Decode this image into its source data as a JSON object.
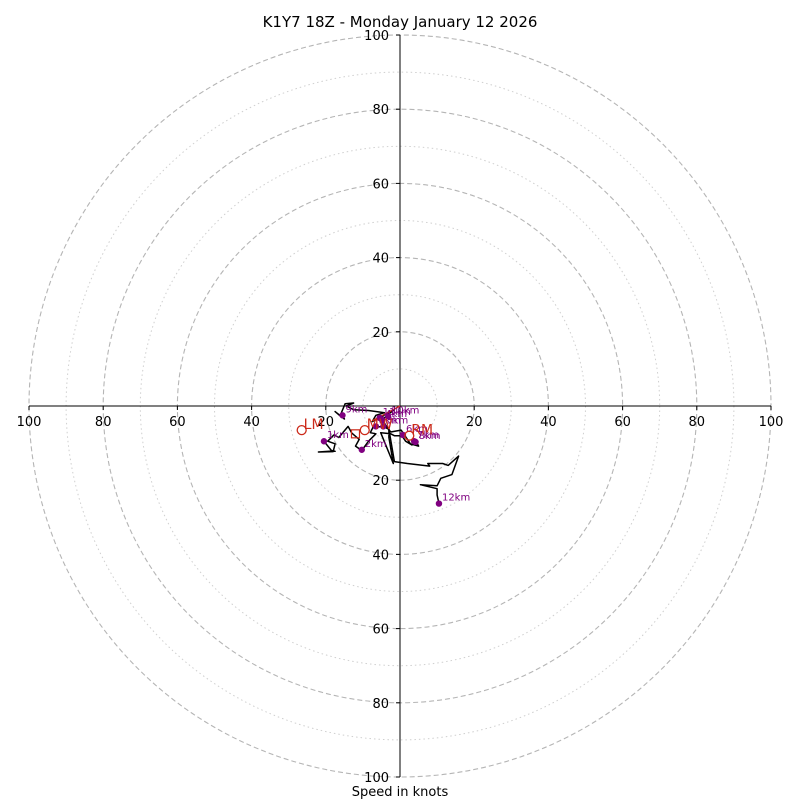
{
  "chart_data": {
    "type": "hodograph",
    "title": "K1Y7 18Z - Monday January 12 2026",
    "xlabel": "Speed in knots",
    "units": "knots",
    "range": 100,
    "ring_major": [
      20,
      40,
      60,
      80,
      100
    ],
    "ring_minor": [
      10,
      30,
      50,
      70,
      90
    ],
    "x_ticks": [
      {
        "value": -100,
        "label": "100"
      },
      {
        "value": -80,
        "label": "80"
      },
      {
        "value": -60,
        "label": "60"
      },
      {
        "value": -40,
        "label": "40"
      },
      {
        "value": -20,
        "label": "20"
      },
      {
        "value": 20,
        "label": "20"
      },
      {
        "value": 40,
        "label": "40"
      },
      {
        "value": 60,
        "label": "60"
      },
      {
        "value": 80,
        "label": "80"
      },
      {
        "value": 100,
        "label": "100"
      }
    ],
    "y_ticks": [
      {
        "value": 100,
        "label": "100"
      },
      {
        "value": 80,
        "label": "80"
      },
      {
        "value": 60,
        "label": "60"
      },
      {
        "value": 40,
        "label": "40"
      },
      {
        "value": 20,
        "label": "20"
      },
      {
        "value": -20,
        "label": "20"
      },
      {
        "value": -40,
        "label": "40"
      },
      {
        "value": -60,
        "label": "60"
      },
      {
        "value": -80,
        "label": "80"
      },
      {
        "value": -100,
        "label": "100"
      }
    ],
    "trace_color": "#000000",
    "trace": [
      [
        -20.5,
        -9.5
      ],
      [
        -18.5,
        -12
      ],
      [
        -17.5,
        -12.2
      ],
      [
        -19,
        -12.2
      ],
      [
        -22,
        -12.4
      ],
      [
        -18,
        -12.3
      ],
      [
        -17.5,
        -10.2
      ],
      [
        -19.5,
        -9.5
      ],
      [
        -17.8,
        -7.8
      ],
      [
        -16.5,
        -8.5
      ],
      [
        -14,
        -5.5
      ],
      [
        -13,
        -7.3
      ],
      [
        -11,
        -9
      ],
      [
        -12,
        -10.8
      ],
      [
        -10.3,
        -12
      ],
      [
        -8.5,
        -9.5
      ],
      [
        -6.5,
        -7.5
      ],
      [
        -8,
        -7.2
      ],
      [
        -7.3,
        -5.8
      ],
      [
        -4.5,
        -5.5
      ],
      [
        -3,
        -6.3
      ],
      [
        -3,
        -8.5
      ],
      [
        -1.8,
        -15.5
      ],
      [
        -5.2,
        -7.2
      ],
      [
        -2.5,
        -7.5
      ],
      [
        -1.5,
        -8
      ],
      [
        0.5,
        -8
      ],
      [
        1.5,
        -9.5
      ],
      [
        3.2,
        -10.5
      ],
      [
        4.5,
        -9.8
      ],
      [
        5,
        -10.8
      ],
      [
        2.8,
        -10.2
      ],
      [
        0.3,
        -6.5
      ],
      [
        -2.5,
        -7
      ],
      [
        -4.8,
        -3.8
      ],
      [
        -3.5,
        -2.5
      ],
      [
        -1.5,
        -1
      ],
      [
        -3.5,
        -2
      ],
      [
        -6,
        -3.5
      ],
      [
        -7.5,
        -4.2
      ],
      [
        -6.5,
        -2.5
      ],
      [
        -4.2,
        -1.8
      ],
      [
        -8.5,
        -1.2
      ],
      [
        -12.5,
        -1
      ],
      [
        -14.5,
        0
      ],
      [
        -12.5,
        0.8
      ],
      [
        -14.8,
        0.6
      ],
      [
        -15.8,
        -1.8
      ],
      [
        -15,
        -3.5
      ],
      [
        -17.5,
        -1.5
      ],
      [
        -15.5,
        -3.2
      ]
    ],
    "trace_tail": [
      [
        -3,
        -6.3
      ],
      [
        -1.5,
        -15
      ],
      [
        2,
        -15.5
      ],
      [
        8,
        -16.2
      ],
      [
        7.5,
        -15.5
      ],
      [
        11.5,
        -15.5
      ],
      [
        13,
        -16
      ],
      [
        15.8,
        -13.5
      ],
      [
        14,
        -18.5
      ],
      [
        11,
        -19.5
      ],
      [
        10,
        -21.5
      ],
      [
        5.5,
        -21.2
      ],
      [
        10,
        -22.3
      ],
      [
        10,
        -24
      ],
      [
        10.5,
        -26.3
      ]
    ],
    "height_points": [
      {
        "label": "1km",
        "u": -20.5,
        "v": -9.5
      },
      {
        "label": "2km",
        "u": -10.3,
        "v": -11.8
      },
      {
        "label": "3km",
        "u": -4.5,
        "v": -5.5
      },
      {
        "label": "4km",
        "u": -4.8,
        "v": -3.8
      },
      {
        "label": "5km",
        "u": -6.5,
        "v": -5.5
      },
      {
        "label": "6km",
        "u": 0.8,
        "v": -7.8
      },
      {
        "label": "7km",
        "u": 3.8,
        "v": -9.5
      },
      {
        "label": "8km",
        "u": 4.2,
        "v": -9.7
      },
      {
        "label": "9km",
        "u": -15.5,
        "v": -2.5
      },
      {
        "label": "10km",
        "u": -3.2,
        "v": -2.8
      },
      {
        "label": "11km",
        "u": -5.5,
        "v": -3.2
      },
      {
        "label": "12km",
        "u": 10.5,
        "v": -26.3
      }
    ],
    "height_label_color": "#800080",
    "motion_markers": [
      {
        "label": "LM",
        "u": -26.5,
        "v": -6.5
      },
      {
        "label": "MW",
        "u": -9.5,
        "v": -6.5
      },
      {
        "label": "RM",
        "u": 2.5,
        "v": -8
      },
      {
        "label": "DTM",
        "u": -12,
        "v": -7.5
      }
    ],
    "motion_marker_color": "#cc2a1a",
    "storm_motion_vector": {
      "u": 0,
      "v": 0,
      "to_u": -7.5,
      "to_v": -4
    }
  }
}
